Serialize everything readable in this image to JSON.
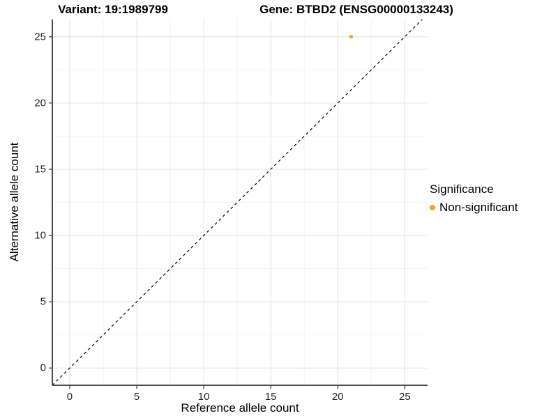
{
  "chart_data": {
    "type": "scatter",
    "titles": {
      "left": "Variant: 19:1989799",
      "right": "Gene: BTBD2 (ENSG00000133243)"
    },
    "xlabel": "Reference allele count",
    "ylabel": "Alternative allele count",
    "xticks": [
      0,
      5,
      10,
      15,
      20,
      25
    ],
    "yticks": [
      0,
      5,
      10,
      15,
      20,
      25
    ],
    "xlim": [
      -1.3,
      26.7
    ],
    "ylim": [
      -1.3,
      26.3
    ],
    "grid": "major+minor",
    "identity_line": {
      "equation": "y = x",
      "style": "dashed",
      "color": "#000000"
    },
    "points": [
      {
        "x": 21,
        "y": 25,
        "series": "Non-significant"
      }
    ],
    "legend": {
      "position": "right",
      "title": "Significance",
      "items": [
        {
          "label": "Non-significant",
          "color": "#F7A228"
        }
      ]
    }
  }
}
